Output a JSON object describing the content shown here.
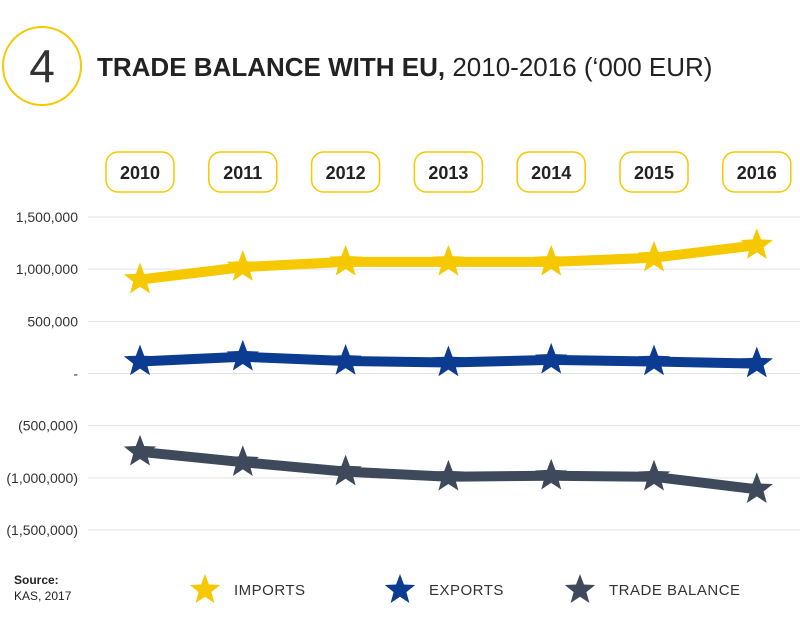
{
  "badge": {
    "number": "4"
  },
  "title": {
    "bold": "TRADE BALANCE WITH EU,",
    "rest": " 2010-2016 (‘000 EUR)"
  },
  "source": {
    "label": "Source:",
    "text": "KAS, 2017"
  },
  "colors": {
    "imports": "#f5c800",
    "exports": "#0b3c91",
    "trade_balance": "#3e4a5c",
    "year_box_border": "#f5c800",
    "grid": "#e3e3e3"
  },
  "legend": [
    {
      "label": "IMPORTS",
      "color": "#f5c800"
    },
    {
      "label": "EXPORTS",
      "color": "#0b3c91"
    },
    {
      "label": "TRADE BALANCE",
      "color": "#3e4a5c"
    }
  ],
  "chart_data": {
    "type": "line",
    "categories": [
      "2010",
      "2011",
      "2012",
      "2013",
      "2014",
      "2015",
      "2016"
    ],
    "series": [
      {
        "name": "IMPORTS",
        "values": [
          900000,
          1020000,
          1070000,
          1070000,
          1070000,
          1110000,
          1230000
        ]
      },
      {
        "name": "EXPORTS",
        "values": [
          115000,
          160000,
          120000,
          105000,
          130000,
          115000,
          95000
        ]
      },
      {
        "name": "TRADE BALANCE",
        "values": [
          -750000,
          -850000,
          -940000,
          -990000,
          -980000,
          -990000,
          -1110000
        ]
      }
    ],
    "yticks": [
      1500000,
      1000000,
      500000,
      0,
      -500000,
      -1000000,
      -1500000
    ],
    "ytick_labels": [
      "1,500,000",
      "1,000,000",
      "500,000",
      "-",
      "(500,000)",
      "(1,000,000)",
      "(1,500,000)"
    ],
    "ylim": [
      -1500000,
      1500000
    ],
    "grid": true,
    "marker": "star",
    "legend_position": "bottom"
  }
}
